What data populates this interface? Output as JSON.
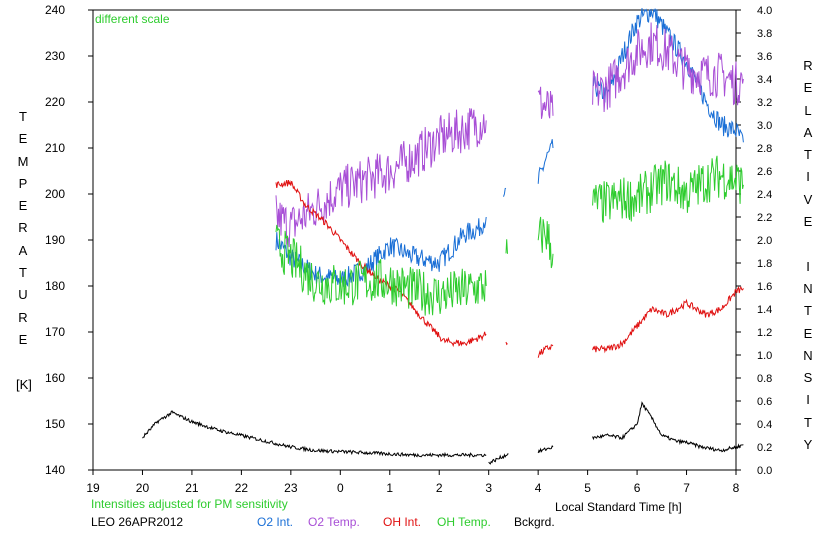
{
  "chart_data": {
    "type": "line",
    "annotation_top": "different scale",
    "annotation_bottom": "Intensities adjusted for PM sensitivity",
    "station_date": "LEO 26APR2012",
    "ylabel_left_letters": [
      "T",
      "E",
      "M",
      "P",
      "E",
      "R",
      "A",
      "T",
      "U",
      "R",
      "E",
      "",
      "[K]"
    ],
    "ylabel_right_letters": [
      "R",
      "E",
      "L",
      "A",
      "T",
      "I",
      "V",
      "E",
      "",
      "I",
      "N",
      "T",
      "E",
      "N",
      "S",
      "I",
      "T",
      "Y"
    ],
    "xlabel": "Local Standard Time [h]",
    "x_ticks": [
      "19",
      "20",
      "21",
      "22",
      "23",
      "0",
      "1",
      "2",
      "3",
      "4",
      "5",
      "6",
      "7",
      "8"
    ],
    "y_left_ticks": [
      140,
      150,
      160,
      170,
      180,
      190,
      200,
      210,
      220,
      230,
      240
    ],
    "y_right_ticks": [
      "0.0",
      "0.2",
      "0.4",
      "0.6",
      "0.8",
      "1.0",
      "1.2",
      "1.4",
      "1.6",
      "1.8",
      "2.0",
      "2.2",
      "2.4",
      "2.6",
      "2.8",
      "3.0",
      "3.2",
      "3.4",
      "3.6",
      "3.8",
      "4.0"
    ],
    "x_range_hours_after_19": [
      0,
      13
    ],
    "ylim_left": [
      140,
      240
    ],
    "ylim_right": [
      0.0,
      4.0
    ],
    "colors": {
      "o2_int": "#1a6fd6",
      "o2_temp": "#a84fd6",
      "oh_int": "#e01010",
      "oh_temp": "#2ecc2e",
      "bckgrd": "#000000",
      "annotation": "#2ecc2e"
    },
    "legend": [
      {
        "label": "O2 Int.",
        "color": "#1a6fd6"
      },
      {
        "label": "O2 Temp.",
        "color": "#a84fd6"
      },
      {
        "label": "OH Int.",
        "color": "#e01010"
      },
      {
        "label": "OH Temp.",
        "color": "#2ecc2e"
      },
      {
        "label": "Bckgrd.",
        "color": "#000000"
      }
    ],
    "series": [
      {
        "name": "O2 Int.",
        "axis": "right",
        "color": "#1a6fd6",
        "segments": [
          [
            [
              22.7,
              2.0
            ],
            [
              23.0,
              1.85
            ],
            [
              23.5,
              1.7
            ],
            [
              24.0,
              1.65
            ],
            [
              24.5,
              1.75
            ],
            [
              25.0,
              1.95
            ],
            [
              25.5,
              1.85
            ],
            [
              26.0,
              1.8
            ],
            [
              26.5,
              2.05
            ],
            [
              26.8,
              2.1
            ],
            [
              26.95,
              2.2
            ]
          ],
          [
            [
              27.3,
              2.3
            ],
            [
              27.35,
              2.45
            ]
          ],
          [
            [
              28.0,
              2.5
            ],
            [
              28.15,
              2.7
            ],
            [
              28.3,
              2.8
            ]
          ],
          [
            [
              29.1,
              3.35
            ],
            [
              29.4,
              3.25
            ],
            [
              29.7,
              3.6
            ],
            [
              30.0,
              3.9
            ],
            [
              30.3,
              4.0
            ],
            [
              30.6,
              3.8
            ],
            [
              31.0,
              3.55
            ],
            [
              31.4,
              3.2
            ],
            [
              31.7,
              3.0
            ],
            [
              32.0,
              2.95
            ],
            [
              32.15,
              2.85
            ]
          ]
        ]
      },
      {
        "name": "O2 Temp.",
        "axis": "left",
        "color": "#a84fd6",
        "segments": [
          [
            [
              22.7,
              195
            ],
            [
              23.0,
              193
            ],
            [
              23.5,
              197
            ],
            [
              24.0,
              201
            ],
            [
              24.5,
              203
            ],
            [
              25.0,
              205
            ],
            [
              25.5,
              208
            ],
            [
              26.0,
              212
            ],
            [
              26.5,
              214
            ],
            [
              26.95,
              216
            ]
          ],
          [
            [
              28.0,
              220
            ],
            [
              28.15,
              219
            ],
            [
              28.3,
              217
            ]
          ],
          [
            [
              29.1,
              222
            ],
            [
              29.4,
              223
            ],
            [
              29.7,
              227
            ],
            [
              30.0,
              231
            ],
            [
              30.3,
              233
            ],
            [
              30.6,
              231
            ],
            [
              31.0,
              227
            ],
            [
              31.4,
              226
            ],
            [
              31.7,
              226
            ],
            [
              32.0,
              224
            ],
            [
              32.15,
              225
            ]
          ]
        ]
      },
      {
        "name": "OH Int.",
        "axis": "right",
        "color": "#e01010",
        "segments": [
          [
            [
              22.7,
              2.48
            ],
            [
              23.0,
              2.5
            ],
            [
              23.3,
              2.3
            ],
            [
              23.7,
              2.15
            ],
            [
              24.0,
              2.0
            ],
            [
              24.4,
              1.8
            ],
            [
              24.8,
              1.65
            ],
            [
              25.2,
              1.55
            ],
            [
              25.5,
              1.4
            ],
            [
              25.8,
              1.25
            ],
            [
              26.1,
              1.12
            ],
            [
              26.5,
              1.1
            ],
            [
              26.8,
              1.15
            ],
            [
              26.95,
              1.18
            ]
          ],
          [
            [
              27.35,
              1.12
            ],
            [
              27.38,
              1.1
            ]
          ],
          [
            [
              28.0,
              1.0
            ],
            [
              28.15,
              1.05
            ],
            [
              28.3,
              1.08
            ]
          ],
          [
            [
              29.1,
              1.05
            ],
            [
              29.4,
              1.05
            ],
            [
              29.7,
              1.1
            ],
            [
              30.0,
              1.25
            ],
            [
              30.3,
              1.4
            ],
            [
              30.6,
              1.35
            ],
            [
              31.0,
              1.45
            ],
            [
              31.4,
              1.35
            ],
            [
              31.7,
              1.4
            ],
            [
              32.0,
              1.55
            ],
            [
              32.15,
              1.58
            ]
          ]
        ]
      },
      {
        "name": "OH Temp.",
        "axis": "left",
        "color": "#2ecc2e",
        "segments": [
          [
            [
              22.7,
              189
            ],
            [
              23.0,
              186
            ],
            [
              23.5,
              181
            ],
            [
              24.0,
              180
            ],
            [
              24.5,
              181
            ],
            [
              25.0,
              181
            ],
            [
              25.5,
              179
            ],
            [
              26.0,
              178
            ],
            [
              26.5,
              179
            ],
            [
              26.95,
              180
            ]
          ],
          [
            [
              27.35,
              185
            ],
            [
              27.38,
              187
            ]
          ],
          [
            [
              28.0,
              190
            ],
            [
              28.15,
              192
            ],
            [
              28.3,
              187
            ]
          ],
          [
            [
              29.1,
              198
            ],
            [
              29.4,
              198
            ],
            [
              29.7,
              199
            ],
            [
              30.0,
              199
            ],
            [
              30.3,
              201
            ],
            [
              30.6,
              203
            ],
            [
              31.0,
              200
            ],
            [
              31.4,
              203
            ],
            [
              31.7,
              204
            ],
            [
              32.0,
              203
            ],
            [
              32.15,
              202
            ]
          ]
        ]
      },
      {
        "name": "Bckgrd.",
        "axis": "right",
        "color": "#000000",
        "segments": [
          [
            [
              20.0,
              0.28
            ],
            [
              20.3,
              0.42
            ],
            [
              20.6,
              0.5
            ],
            [
              21.0,
              0.42
            ],
            [
              21.5,
              0.35
            ],
            [
              22.0,
              0.3
            ],
            [
              22.5,
              0.25
            ],
            [
              23.0,
              0.2
            ],
            [
              23.5,
              0.17
            ],
            [
              24.0,
              0.16
            ],
            [
              24.5,
              0.15
            ],
            [
              25.0,
              0.14
            ],
            [
              25.5,
              0.13
            ],
            [
              26.0,
              0.13
            ],
            [
              26.5,
              0.13
            ],
            [
              26.95,
              0.13
            ]
          ],
          [
            [
              27.0,
              0.06
            ],
            [
              27.2,
              0.1
            ],
            [
              27.4,
              0.14
            ]
          ],
          [
            [
              28.0,
              0.16
            ],
            [
              28.3,
              0.2
            ]
          ],
          [
            [
              29.1,
              0.28
            ],
            [
              29.4,
              0.3
            ],
            [
              29.7,
              0.28
            ],
            [
              30.0,
              0.4
            ],
            [
              30.1,
              0.58
            ],
            [
              30.3,
              0.45
            ],
            [
              30.5,
              0.3
            ],
            [
              30.8,
              0.25
            ],
            [
              31.0,
              0.24
            ],
            [
              31.3,
              0.2
            ],
            [
              31.7,
              0.17
            ],
            [
              32.0,
              0.2
            ],
            [
              32.15,
              0.22
            ]
          ]
        ]
      }
    ]
  }
}
